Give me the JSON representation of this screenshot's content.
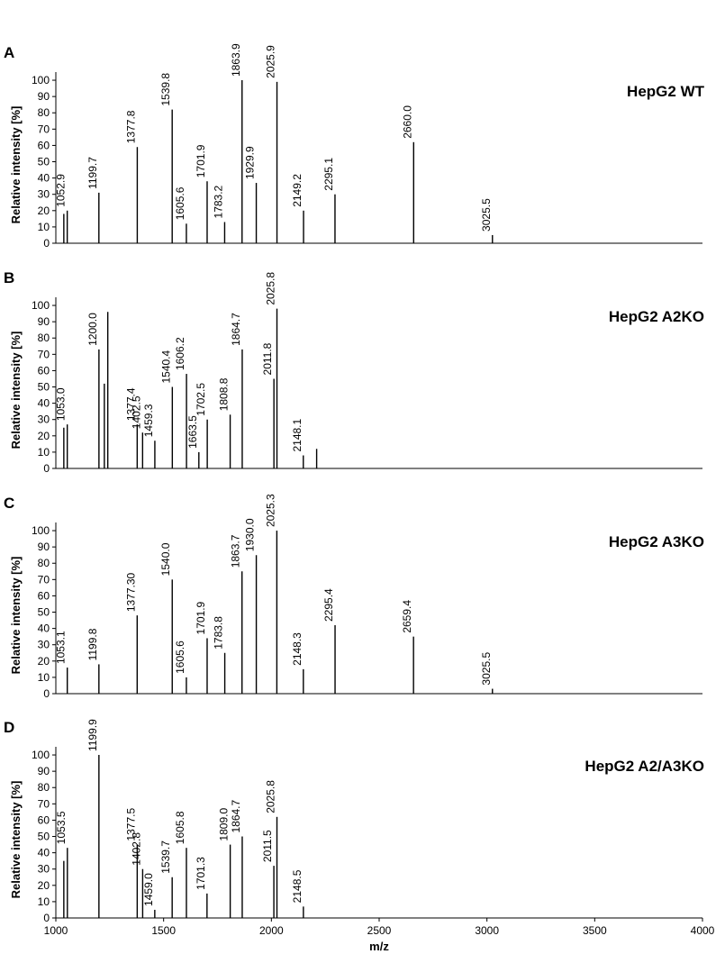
{
  "chart_data": [
    {
      "type": "stem",
      "panel": "A",
      "label": "HepG2 WT",
      "ylabel": "Relative intensity [%]",
      "color": "#000000",
      "xlim": [
        1000,
        4000
      ],
      "ylim": [
        0,
        105
      ],
      "yticks": [
        0,
        10,
        20,
        30,
        40,
        50,
        60,
        70,
        80,
        90,
        100
      ],
      "x": [
        1037,
        1052.9,
        1199.7,
        1377.8,
        1539.8,
        1605.6,
        1701.9,
        1783.2,
        1863.9,
        1929.9,
        2025.9,
        2149.2,
        2295.1,
        2660.0,
        3025.5
      ],
      "values": [
        18,
        20,
        31,
        59,
        82,
        12,
        38,
        13,
        100,
        37,
        99,
        20,
        30,
        62,
        5
      ],
      "peak_labels": [
        null,
        "1052.9",
        "1199.7",
        "1377.8",
        "1539.8",
        "1605.6",
        "1701.9",
        "1783.2",
        "1863.9",
        "1929.9",
        "2025.9",
        "2149.2",
        "2295.1",
        "2660.0",
        "3025.5"
      ]
    },
    {
      "type": "stem",
      "panel": "B",
      "label": "HepG2 A2KO",
      "ylabel": "Relative intensity [%]",
      "color": "#000000",
      "xlim": [
        1000,
        4000
      ],
      "ylim": [
        0,
        105
      ],
      "yticks": [
        0,
        10,
        20,
        30,
        40,
        50,
        60,
        70,
        80,
        90,
        100
      ],
      "x": [
        1037,
        1053.0,
        1200.0,
        1225,
        1241,
        1377.4,
        1402.5,
        1459.3,
        1540.4,
        1606.2,
        1663.5,
        1702.5,
        1808.8,
        1864.7,
        2011.8,
        2025.8,
        2148.1,
        2210
      ],
      "values": [
        25,
        27,
        73,
        52,
        96,
        27,
        22,
        17,
        50,
        58,
        10,
        30,
        33,
        73,
        55,
        98,
        8,
        12
      ],
      "peak_labels": [
        null,
        "1053.0",
        "1200.0",
        null,
        null,
        "1377.4",
        "1402.5",
        "1459.3",
        "1540.4",
        "1606.2",
        "1663.5",
        "1702.5",
        "1808.8",
        "1864.7",
        "2011.8",
        "2025.8",
        "2148.1",
        null
      ]
    },
    {
      "type": "stem",
      "panel": "C",
      "label": "HepG2 A3KO",
      "ylabel": "Relative intensity [%]",
      "color": "#000000",
      "xlim": [
        1000,
        4000
      ],
      "ylim": [
        0,
        105
      ],
      "yticks": [
        0,
        10,
        20,
        30,
        40,
        50,
        60,
        70,
        80,
        90,
        100
      ],
      "x": [
        1053.1,
        1199.8,
        1377.3,
        1540.0,
        1605.6,
        1701.9,
        1783.8,
        1863.7,
        1930.0,
        2025.3,
        2148.3,
        2295.4,
        2659.4,
        3025.5
      ],
      "values": [
        16,
        18,
        48,
        70,
        10,
        34,
        25,
        75,
        85,
        100,
        15,
        42,
        35,
        3
      ],
      "peak_labels": [
        "1053.1",
        "1199.8",
        "1377.30",
        "1540.0",
        "1605.6",
        "1701.9",
        "1783.8",
        "1863.7",
        "1930.0",
        "2025.3",
        "2148.3",
        "2295.4",
        "2659.4",
        "3025.5"
      ]
    },
    {
      "type": "stem",
      "panel": "D",
      "label": "HepG2 A2/A3KO",
      "ylabel": "Relative intensity [%]",
      "color": "#000000",
      "xlim": [
        1000,
        4000
      ],
      "ylim": [
        0,
        105
      ],
      "yticks": [
        0,
        10,
        20,
        30,
        40,
        50,
        60,
        70,
        80,
        90,
        100
      ],
      "xticks": [
        1000,
        1500,
        2000,
        2500,
        3000,
        3500,
        4000
      ],
      "xlabel": "m/z",
      "x": [
        1037,
        1053.5,
        1199.9,
        1377.5,
        1402.8,
        1459.0,
        1539.7,
        1605.8,
        1701.3,
        1809.0,
        1864.7,
        2011.5,
        2025.8,
        2148.5
      ],
      "values": [
        35,
        43,
        100,
        45,
        30,
        5,
        25,
        43,
        15,
        45,
        50,
        32,
        62,
        7
      ],
      "peak_labels": [
        null,
        "1053.5",
        "1199.9",
        "1377.5",
        "1402.8",
        "1459.0",
        "1539.7",
        "1605.8",
        "1701.3",
        "1809.0",
        "1864.7",
        "2011.5",
        "2025.8",
        "2148.5"
      ]
    }
  ]
}
